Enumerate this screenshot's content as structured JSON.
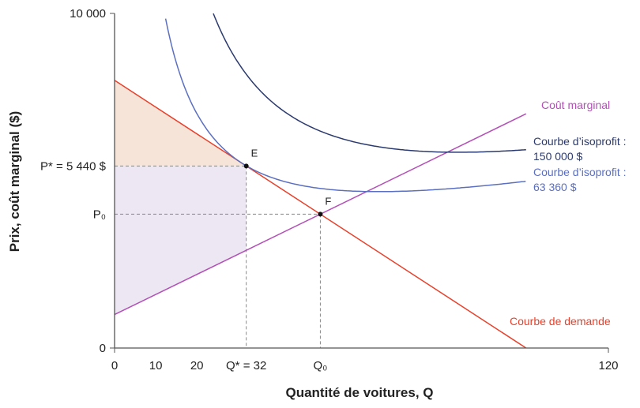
{
  "chart_data": {
    "type": "line",
    "title": "",
    "xlabel": "Quantité de voitures, Q",
    "ylabel": "Prix, coût marginal ($)",
    "xlim": [
      0,
      120
    ],
    "ylim": [
      0,
      10000
    ],
    "grid": false,
    "x_ticks": [
      {
        "value": 0,
        "label": "0"
      },
      {
        "value": 10,
        "label": "10"
      },
      {
        "value": 20,
        "label": "20"
      },
      {
        "value": 32,
        "label": "Q* = 32"
      },
      {
        "value": 50,
        "label": "Q₀"
      },
      {
        "value": 120,
        "label": "120"
      }
    ],
    "y_ticks": [
      {
        "value": 0,
        "label": "0"
      },
      {
        "value": 4000,
        "label": "P₀"
      },
      {
        "value": 5440,
        "label": "P* = 5 440 $"
      },
      {
        "value": 10000,
        "label": "10 000"
      }
    ],
    "series": [
      {
        "name": "Courbe de demande",
        "color": "#e8402a",
        "form": "linear",
        "points": [
          [
            0,
            8000
          ],
          [
            100,
            0
          ]
        ]
      },
      {
        "name": "Coût marginal",
        "color": "#b44fb8",
        "form": "linear",
        "points": [
          [
            0,
            1000
          ],
          [
            100,
            7000
          ]
        ]
      },
      {
        "name": "Courbe d’isoprofit : 150 000 $",
        "color": "#2b3a6e",
        "form": "isoprofit",
        "coef": {
          "a": 1157,
          "b": 196000,
          "c": 28.1
        },
        "domain": [
          24,
          100
        ]
      },
      {
        "name": "Courbe d’isoprofit : 63 360 $",
        "color": "#5b6fc0",
        "form": "isoprofit",
        "coef": {
          "a": 1598,
          "b": 98560,
          "c": 24
        },
        "domain": [
          12.4,
          100
        ]
      }
    ],
    "points": [
      {
        "label": "E",
        "x": 32,
        "y": 5440
      },
      {
        "label": "F",
        "x": 50,
        "y": 4000
      }
    ],
    "shaded_regions": [
      {
        "color": "#f6e4d9",
        "polygon": [
          [
            0,
            8000
          ],
          [
            32,
            5440
          ],
          [
            0,
            5440
          ]
        ]
      },
      {
        "color": "#ede7f3",
        "polygon": [
          [
            0,
            5440
          ],
          [
            32,
            5440
          ],
          [
            32,
            2920
          ],
          [
            0,
            1000
          ]
        ]
      }
    ],
    "legend_labels": {
      "mc": "Coût marginal",
      "iso150_l1": "Courbe d’isoprofit :",
      "iso150_l2": "150 000 $",
      "iso63_l1": "Courbe d’isoprofit :",
      "iso63_l2": "63 360 $",
      "demand": "Courbe de demande"
    }
  }
}
